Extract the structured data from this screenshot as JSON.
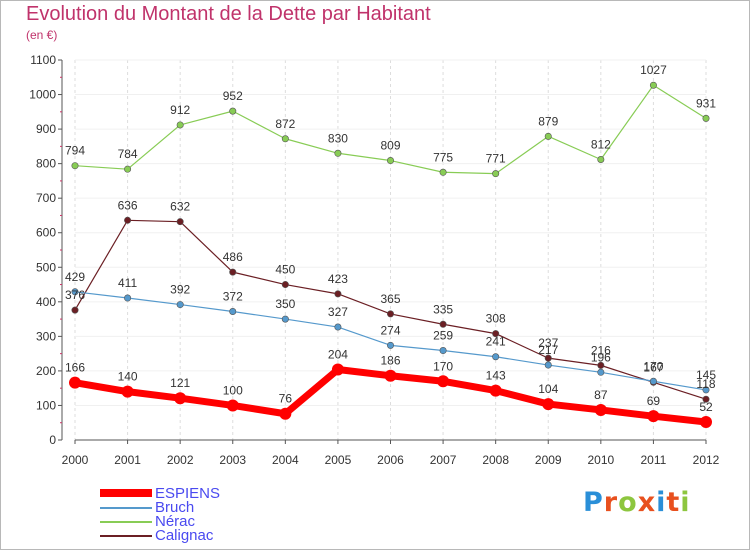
{
  "header": {
    "title": "Evolution du Montant de la Dette par Habitant",
    "unit": "(en €)"
  },
  "logo": {
    "text": "Proxiti",
    "letter_colors": [
      "#2a8fd8",
      "#e8501e",
      "#8dc63f",
      "#e8501e",
      "#2a8fd8",
      "#e8501e",
      "#8dc63f"
    ]
  },
  "chart_data": {
    "type": "line",
    "title": "Evolution du Montant de la Dette par Habitant",
    "subtitle": "(en €)",
    "xlabel": "",
    "ylabel": "",
    "x": [
      "2000",
      "2001",
      "2002",
      "2003",
      "2004",
      "2005",
      "2006",
      "2007",
      "2008",
      "2009",
      "2010",
      "2011",
      "2012"
    ],
    "ylim": [
      0,
      1100
    ],
    "yticks": [
      0,
      100,
      200,
      300,
      400,
      500,
      600,
      700,
      800,
      900,
      1000,
      1100
    ],
    "grid": "vertical",
    "legend_position": "bottom-left",
    "series": [
      {
        "name": "ESPIENS",
        "color": "#ff0000",
        "values": [
          166,
          140,
          121,
          100,
          76,
          204,
          186,
          170,
          143,
          104,
          87,
          69,
          52
        ]
      },
      {
        "name": "Bruch",
        "color": "#5599cc",
        "values": [
          429,
          411,
          392,
          372,
          350,
          327,
          274,
          259,
          241,
          217,
          196,
          170,
          145
        ]
      },
      {
        "name": "Nérac",
        "color": "#88cc55",
        "values": [
          794,
          784,
          912,
          952,
          872,
          830,
          809,
          775,
          771,
          879,
          812,
          1027,
          931
        ]
      },
      {
        "name": "Calignac",
        "color": "#6b1f24",
        "values": [
          376,
          636,
          632,
          486,
          450,
          423,
          365,
          335,
          308,
          237,
          216,
          167,
          118
        ]
      }
    ]
  }
}
